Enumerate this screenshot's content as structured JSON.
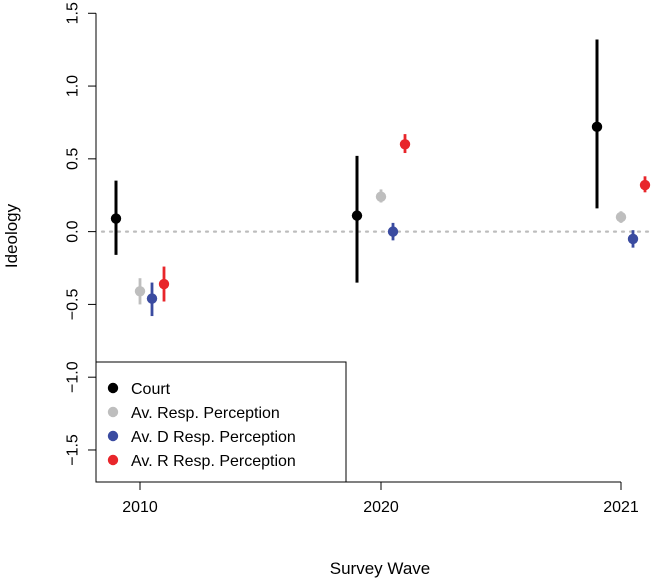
{
  "chart_data": {
    "type": "scatter",
    "title": "",
    "xlabel": "Survey Wave",
    "ylabel": "Ideology",
    "ylim": [
      -1.72,
      1.55
    ],
    "yticks": [
      -1.5,
      -1.0,
      -0.5,
      0.0,
      0.5,
      1.0,
      1.5
    ],
    "ytick_labels": [
      "−1.5",
      "−1.0",
      "−0.5",
      "0.0",
      "0.5",
      "1.0",
      "1.5"
    ],
    "categories": [
      "2010",
      "2020",
      "2021"
    ],
    "reference_line": 0.0,
    "series": [
      {
        "name": "Court",
        "color": "#000000",
        "values": [
          0.09,
          0.11,
          0.72
        ],
        "lower": [
          -0.16,
          -0.35,
          0.16
        ],
        "upper": [
          0.35,
          0.52,
          1.32
        ]
      },
      {
        "name": "Av. Resp. Perception",
        "color": "#bebebe",
        "values": [
          -0.41,
          0.24,
          0.1
        ],
        "lower": [
          -0.5,
          0.2,
          0.06
        ],
        "upper": [
          -0.32,
          0.29,
          0.14
        ]
      },
      {
        "name": "Av. D Resp. Perception",
        "color": "#3a4ba0",
        "values": [
          -0.46,
          0.0,
          -0.05
        ],
        "lower": [
          -0.58,
          -0.06,
          -0.11
        ],
        "upper": [
          -0.35,
          0.06,
          0.01
        ]
      },
      {
        "name": "Av. R Resp. Perception",
        "color": "#e8262b",
        "values": [
          -0.36,
          0.6,
          0.32
        ],
        "lower": [
          -0.48,
          0.54,
          0.27
        ],
        "upper": [
          -0.24,
          0.67,
          0.38
        ]
      }
    ],
    "legend": {
      "position": "bottom-left"
    }
  }
}
